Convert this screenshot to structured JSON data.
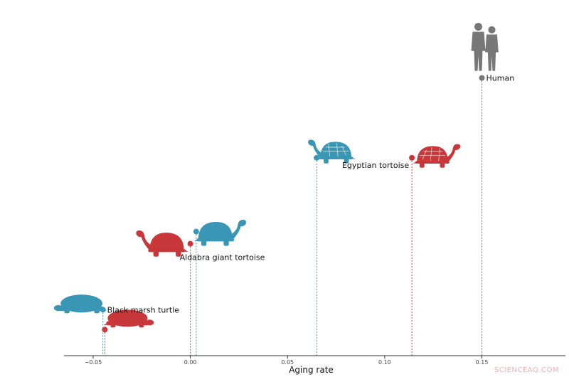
{
  "chart_data": {
    "type": "scatter",
    "xlabel": "Aging rate",
    "xlim": [
      -0.065,
      0.193
    ],
    "xticks": [
      -0.05,
      0,
      0.05,
      0.1,
      0.15
    ],
    "tick_labels": [
      "−0.05",
      "0.00",
      "0.05",
      "0.10",
      "0.15"
    ],
    "grid": false,
    "colors": {
      "blue": "#3a96b5",
      "red": "#c8373a",
      "gray": "#777777"
    },
    "points": [
      {
        "x": -0.045,
        "level": 0.265,
        "color": "blue",
        "icon": "turtle-icon"
      },
      {
        "x": -0.044,
        "level": 0.15,
        "color": "red",
        "icon": "turtle-icon"
      },
      {
        "x": 0.0,
        "level": 0.645,
        "color": "red",
        "icon": "tortoise-icon"
      },
      {
        "x": 0.003,
        "level": 0.715,
        "color": "blue",
        "icon": "tortoise-icon"
      },
      {
        "x": 0.065,
        "level": 1.14,
        "color": "blue",
        "icon": "tortoise-icon"
      },
      {
        "x": 0.114,
        "level": 1.14,
        "color": "red",
        "icon": "tortoise-icon"
      },
      {
        "x": 0.15,
        "level": 1.6,
        "color": "gray",
        "icon": "human-icon"
      }
    ],
    "annotations": [
      {
        "text": "Black marsh turtle",
        "x": -0.045,
        "level": 0.265,
        "anchor": "right"
      },
      {
        "text": "Aldabra giant tortoise",
        "x": 0.0,
        "level": 0.645,
        "anchor": "below-right"
      },
      {
        "text": "Egyptian tortoise",
        "x": 0.114,
        "level": 1.14,
        "anchor": "below-left"
      },
      {
        "text": "Human",
        "x": 0.15,
        "level": 1.6,
        "anchor": "right"
      }
    ]
  },
  "watermark": "SCIENCEAQ.COM"
}
